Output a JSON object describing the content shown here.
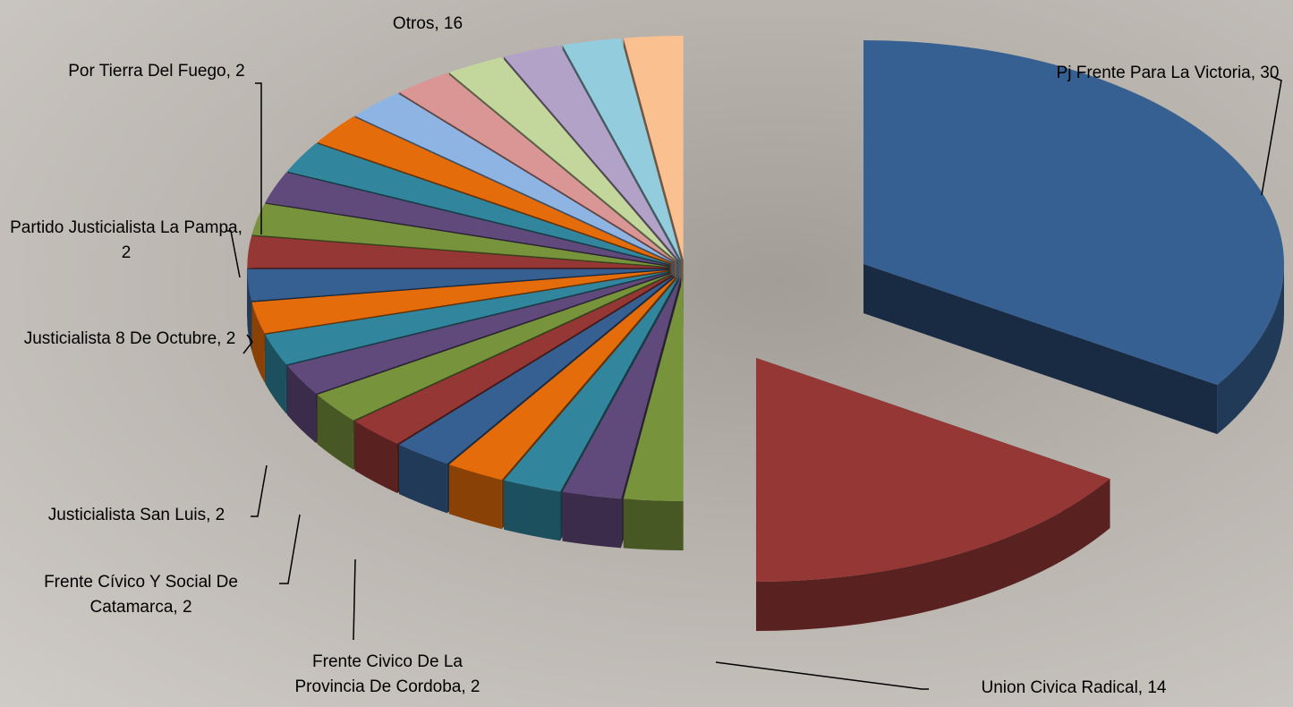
{
  "chart_data": {
    "type": "pie3d",
    "values": [
      30,
      14,
      2,
      2,
      2,
      2,
      2,
      2,
      2,
      2,
      2,
      2,
      2,
      2,
      2,
      2,
      2,
      2,
      2,
      2,
      2,
      2,
      2,
      2
    ],
    "value_labels": [
      "Pj Frente Para La Victoria, 30",
      "Union Civica Radical, 14",
      "Frente Civico De La Provincia De Cordoba, 2",
      "Frente Cívico Y Social De Catamarca, 2",
      "Justicialista San Luis, 2",
      "Justicialista 8 De Octubre, 2",
      "Partido Justicialista La Pampa, 2",
      "Por Tierra Del Fuego, 2",
      null,
      null,
      null,
      null,
      null,
      null,
      null,
      null,
      null,
      null,
      null,
      null,
      null,
      null,
      null,
      null
    ],
    "colors": [
      "#376092",
      "#953735",
      "#77933c",
      "#604a7b",
      "#31859c",
      "#e46c0a",
      "#376092",
      "#953735",
      "#77933c",
      "#604a7b",
      "#31859c",
      "#e46c0a",
      "#376092",
      "#953735",
      "#77933c",
      "#604a7b",
      "#31859c",
      "#e46c0a",
      "#8eb4e3",
      "#d99694",
      "#c3d69b",
      "#b3a2c7",
      "#93cddd",
      "#fac090"
    ],
    "annotation": "Otros,  16"
  }
}
